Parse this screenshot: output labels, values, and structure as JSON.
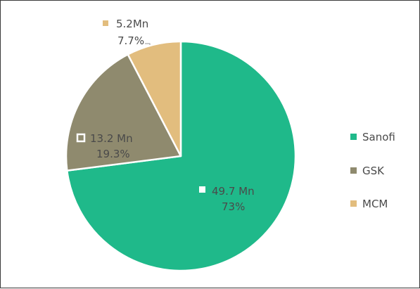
{
  "chart_data": {
    "type": "pie",
    "title": "",
    "categories": [
      "Sanofi",
      "GSK",
      "MCM"
    ],
    "values": [
      49.7,
      13.2,
      5.2
    ],
    "value_labels": [
      "49.7 Mn",
      "13.2 Mn",
      "5.2Mn"
    ],
    "percent_labels": [
      "73%",
      "19.3%",
      "7.7%"
    ],
    "percentages": [
      73,
      19.3,
      7.7
    ],
    "unit": "Mn",
    "legend_position": "right",
    "colors": [
      "#1fb98a",
      "#8f8a6e",
      "#e2bd7e"
    ]
  }
}
